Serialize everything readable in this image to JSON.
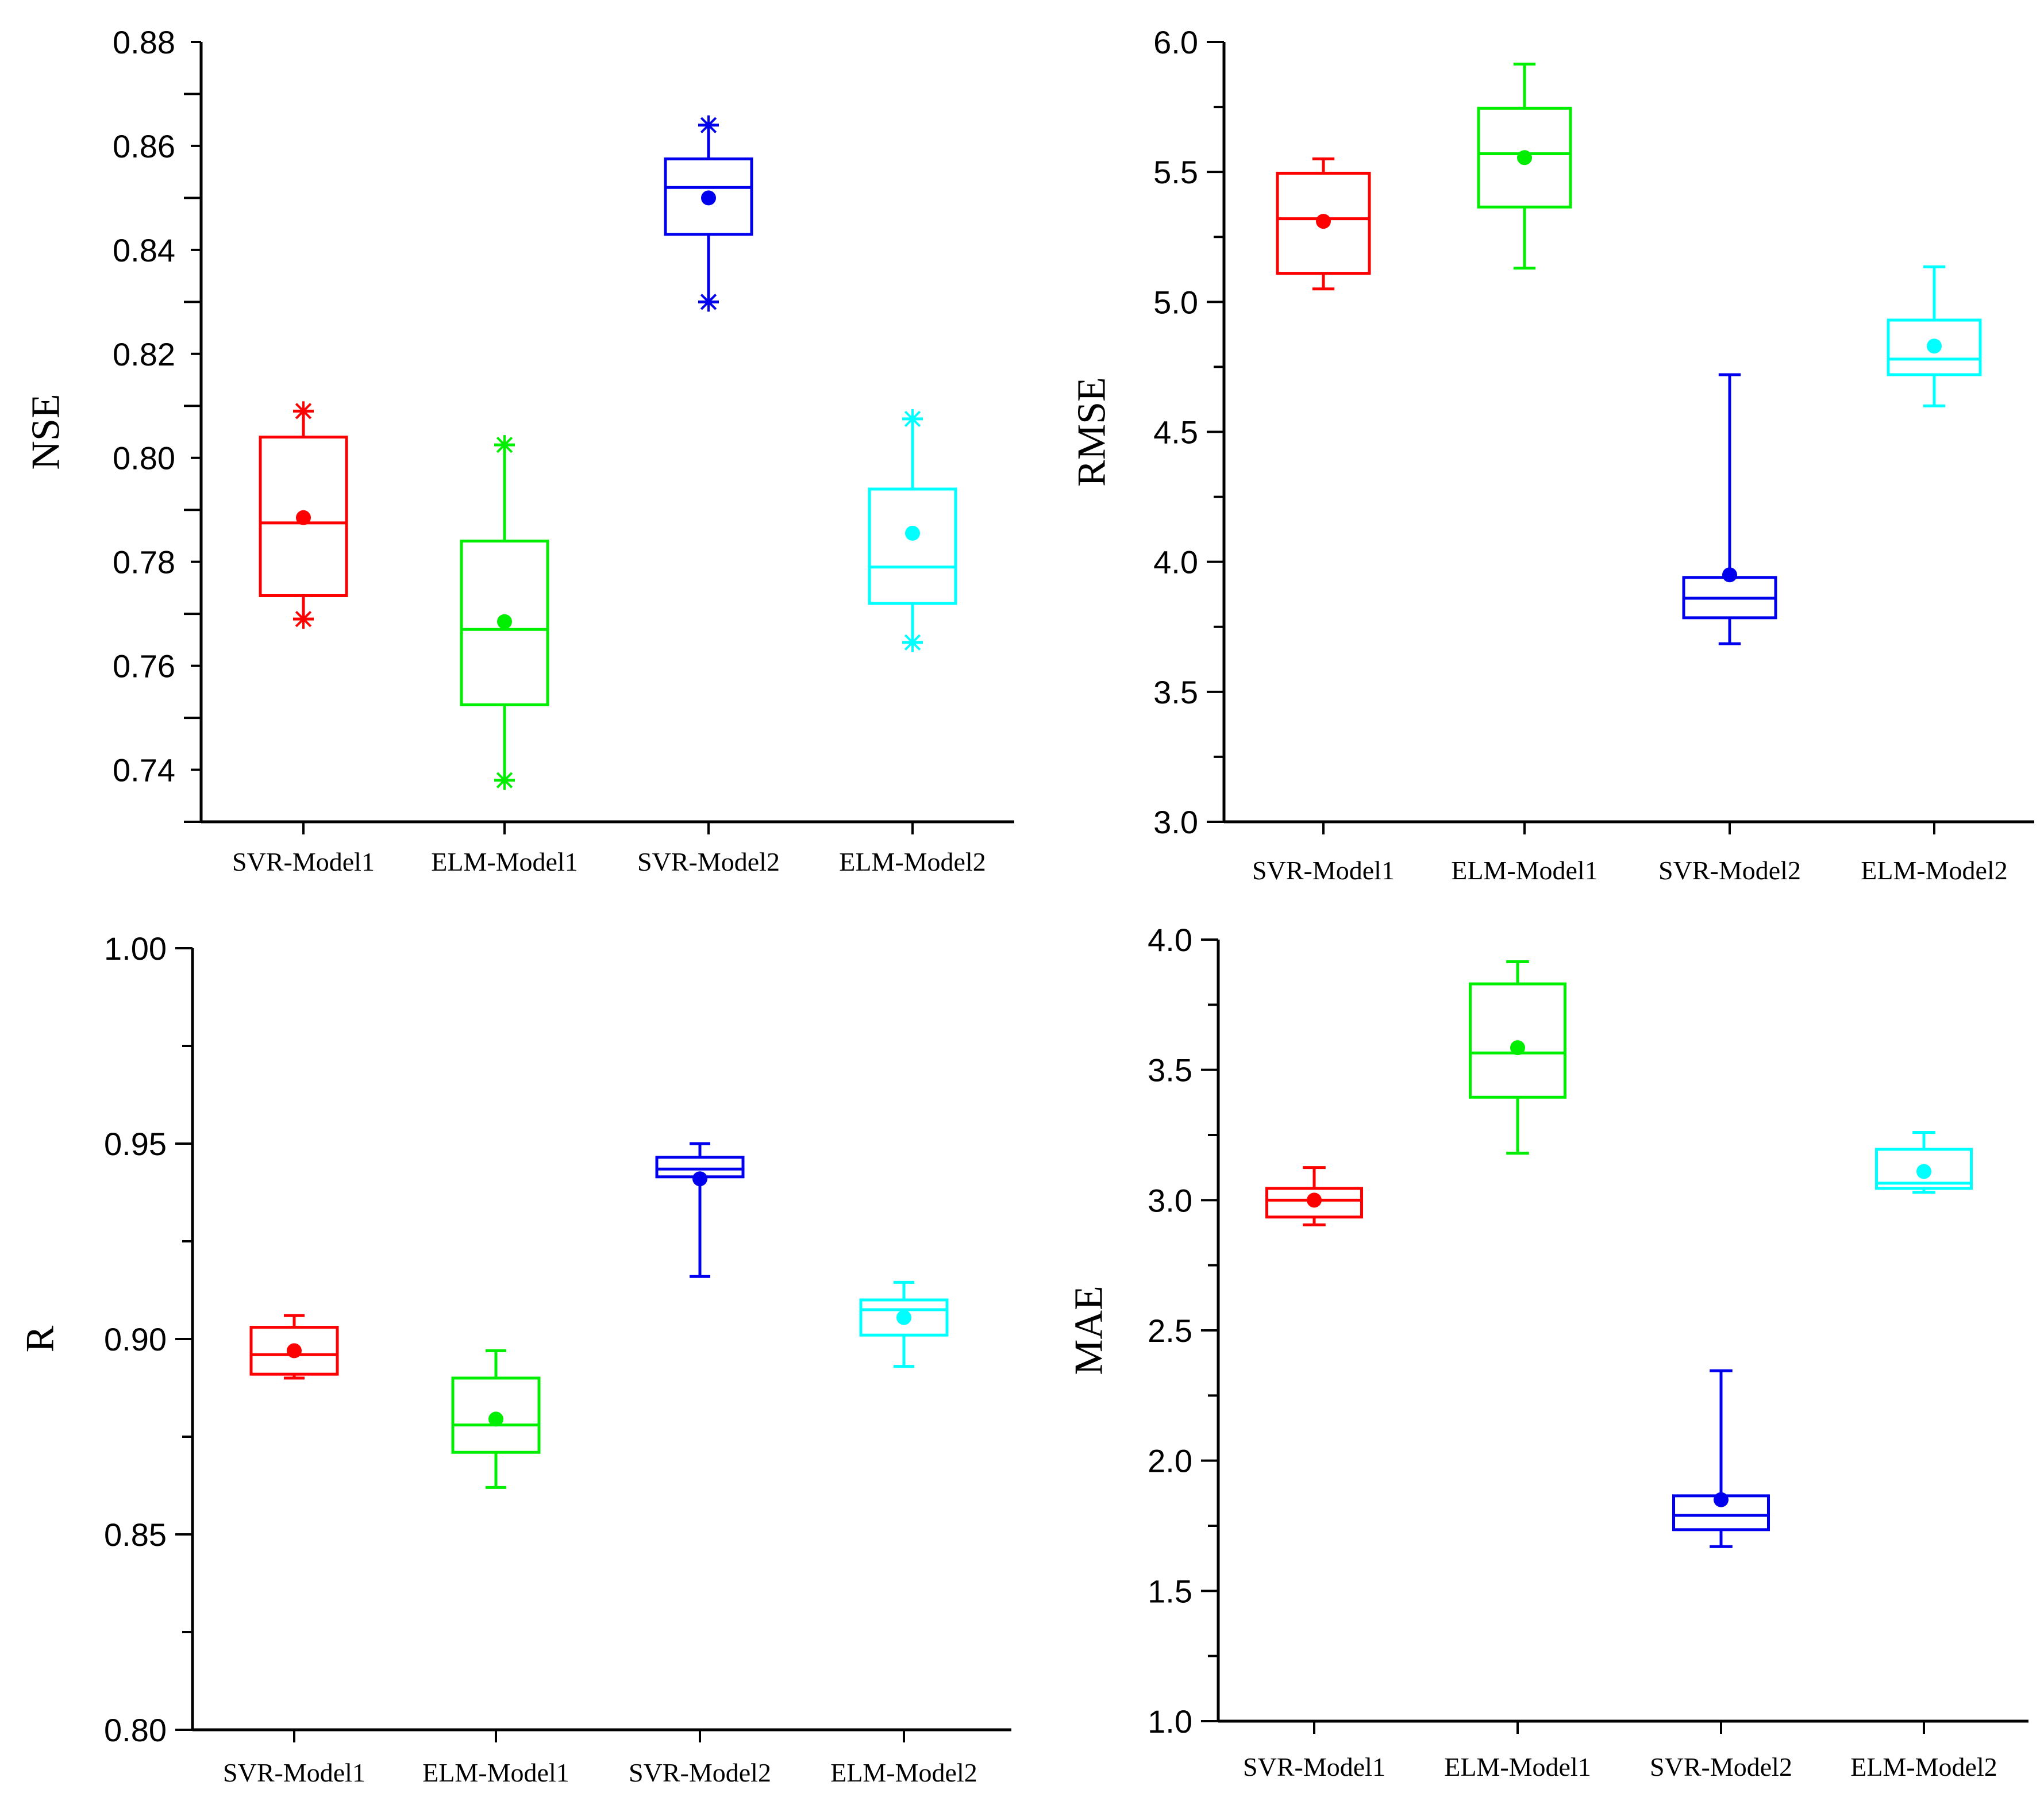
{
  "chart_data": [
    {
      "type": "box",
      "title": "",
      "xlabel": "",
      "ylabel": "NSE",
      "ylim": [
        0.73,
        0.88
      ],
      "ytick_step": 0.02,
      "ytick_decimals": 2,
      "categories": [
        "SVR-Model1",
        "ELM-Model1",
        "SVR-Model2",
        "ELM-Model2"
      ],
      "colors": [
        "#ff0000",
        "#00ee00",
        "#0000ee",
        "#00ffff"
      ],
      "boxes": [
        {
          "q1": 0.7735,
          "median": 0.7875,
          "q3": 0.804,
          "whisker_low": 0.769,
          "whisker_high": 0.809,
          "mean": 0.7885,
          "outlier_marks": true
        },
        {
          "q1": 0.7525,
          "median": 0.767,
          "q3": 0.784,
          "whisker_low": 0.738,
          "whisker_high": 0.8025,
          "mean": 0.7685,
          "outlier_marks": true
        },
        {
          "q1": 0.843,
          "median": 0.852,
          "q3": 0.8575,
          "whisker_low": 0.83,
          "whisker_high": 0.864,
          "mean": 0.85,
          "outlier_marks": true
        },
        {
          "q1": 0.772,
          "median": 0.779,
          "q3": 0.794,
          "whisker_low": 0.7645,
          "whisker_high": 0.8075,
          "mean": 0.7855,
          "outlier_marks": true
        }
      ]
    },
    {
      "type": "box",
      "title": "",
      "xlabel": "",
      "ylabel": "RMSE",
      "ylim": [
        3.0,
        6.0
      ],
      "ytick_step": 0.5,
      "ytick_decimals": 1,
      "categories": [
        "SVR-Model1",
        "ELM-Model1",
        "SVR-Model2",
        "ELM-Model2"
      ],
      "colors": [
        "#ff0000",
        "#00ee00",
        "#0000ee",
        "#00ffff"
      ],
      "boxes": [
        {
          "q1": 5.11,
          "median": 5.32,
          "q3": 5.495,
          "whisker_low": 5.05,
          "whisker_high": 5.55,
          "mean": 5.31,
          "outlier_marks": false
        },
        {
          "q1": 5.365,
          "median": 5.57,
          "q3": 5.745,
          "whisker_low": 5.13,
          "whisker_high": 5.915,
          "mean": 5.555,
          "outlier_marks": false
        },
        {
          "q1": 3.785,
          "median": 3.86,
          "q3": 3.94,
          "whisker_low": 3.685,
          "whisker_high": 4.72,
          "mean": 3.95,
          "outlier_marks": false
        },
        {
          "q1": 4.72,
          "median": 4.78,
          "q3": 4.93,
          "whisker_low": 4.6,
          "whisker_high": 5.135,
          "mean": 4.83,
          "outlier_marks": false
        }
      ]
    },
    {
      "type": "box",
      "title": "",
      "xlabel": "",
      "ylabel": "R",
      "ylim": [
        0.8,
        1.0
      ],
      "ytick_step": 0.05,
      "ytick_decimals": 2,
      "categories": [
        "SVR-Model1",
        "ELM-Model1",
        "SVR-Model2",
        "ELM-Model2"
      ],
      "colors": [
        "#ff0000",
        "#00ee00",
        "#0000ee",
        "#00ffff"
      ],
      "boxes": [
        {
          "q1": 0.891,
          "median": 0.896,
          "q3": 0.903,
          "whisker_low": 0.89,
          "whisker_high": 0.906,
          "mean": 0.897,
          "outlier_marks": false
        },
        {
          "q1": 0.871,
          "median": 0.878,
          "q3": 0.89,
          "whisker_low": 0.862,
          "whisker_high": 0.897,
          "mean": 0.8795,
          "outlier_marks": false
        },
        {
          "q1": 0.9415,
          "median": 0.9435,
          "q3": 0.9465,
          "whisker_low": 0.916,
          "whisker_high": 0.95,
          "mean": 0.941,
          "outlier_marks": false
        },
        {
          "q1": 0.901,
          "median": 0.9075,
          "q3": 0.91,
          "whisker_low": 0.893,
          "whisker_high": 0.9145,
          "mean": 0.9055,
          "outlier_marks": false
        }
      ]
    },
    {
      "type": "box",
      "title": "",
      "xlabel": "",
      "ylabel": "MAE",
      "ylim": [
        1.0,
        4.0
      ],
      "ytick_step": 0.5,
      "ytick_decimals": 1,
      "categories": [
        "SVR-Model1",
        "ELM-Model1",
        "SVR-Model2",
        "ELM-Model2"
      ],
      "colors": [
        "#ff0000",
        "#00ee00",
        "#0000ee",
        "#00ffff"
      ],
      "boxes": [
        {
          "q1": 2.935,
          "median": 3.0,
          "q3": 3.045,
          "whisker_low": 2.905,
          "whisker_high": 3.125,
          "mean": 3.0,
          "outlier_marks": false
        },
        {
          "q1": 3.395,
          "median": 3.565,
          "q3": 3.83,
          "whisker_low": 3.18,
          "whisker_high": 3.915,
          "mean": 3.585,
          "outlier_marks": false
        },
        {
          "q1": 1.735,
          "median": 1.79,
          "q3": 1.865,
          "whisker_low": 1.67,
          "whisker_high": 2.345,
          "mean": 1.85,
          "outlier_marks": false
        },
        {
          "q1": 3.045,
          "median": 3.065,
          "q3": 3.195,
          "whisker_low": 3.03,
          "whisker_high": 3.26,
          "mean": 3.11,
          "outlier_marks": false
        }
      ]
    }
  ]
}
